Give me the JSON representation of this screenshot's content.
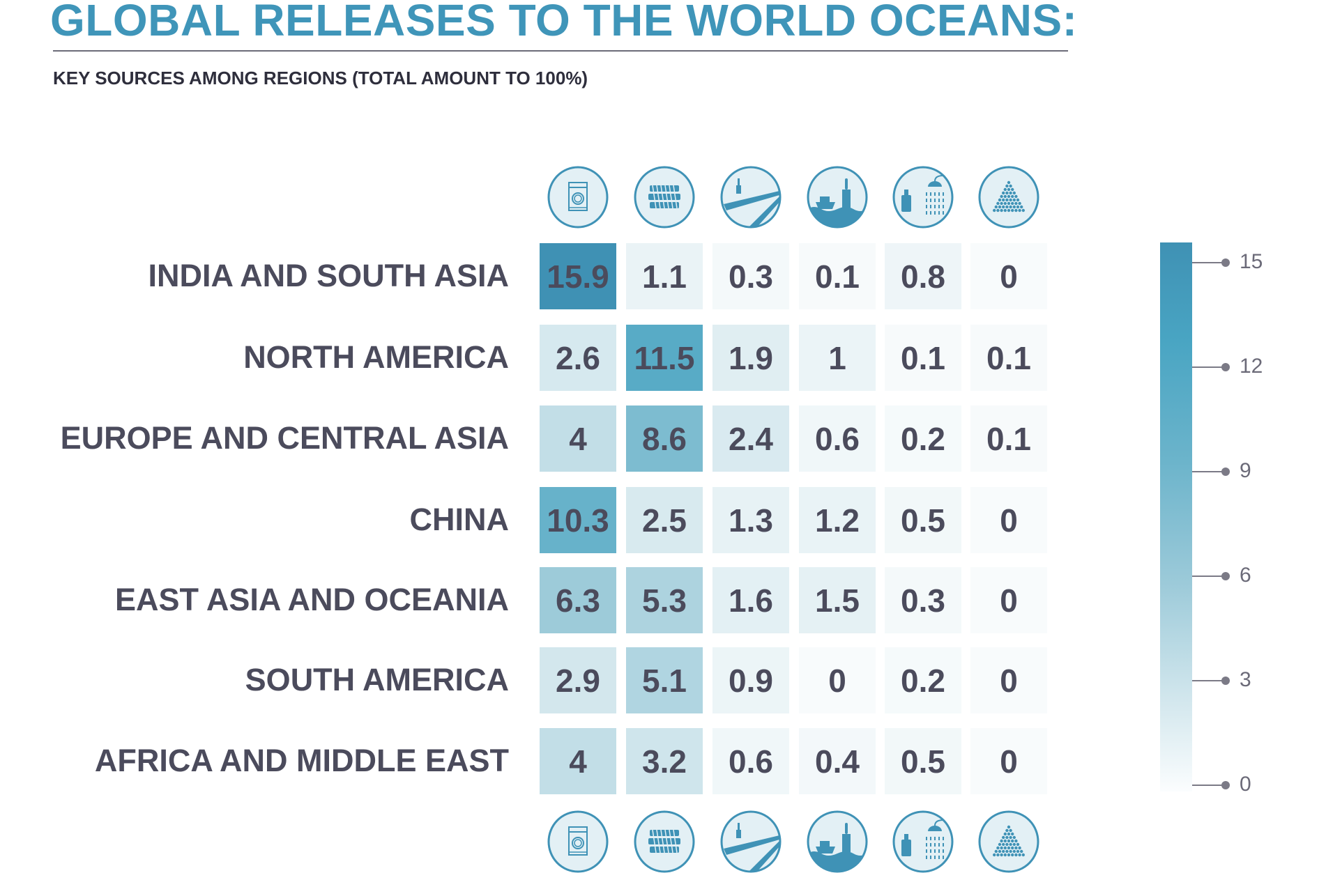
{
  "title": "GLOBAL RELEASES TO THE WORLD OCEANS:",
  "subtitle": "KEY SOURCES AMONG REGIONS (TOTAL AMOUNT TO 100%)",
  "chart_data": {
    "type": "heatmap",
    "title": "GLOBAL RELEASES TO THE WORLD OCEANS:",
    "subtitle": "KEY SOURCES AMONG REGIONS (TOTAL AMOUNT TO 100%)",
    "rows": [
      "INDIA AND SOUTH ASIA",
      "NORTH AMERICA",
      "EUROPE AND CENTRAL ASIA",
      "CHINA",
      "EAST ASIA AND OCEANIA",
      "SOUTH AMERICA",
      "AFRICA AND MIDDLE EAST"
    ],
    "columns": [
      "washing-machine-icon",
      "tyres-icon",
      "road-paint-icon",
      "marine-coatings-icon",
      "personal-care-icon",
      "plastic-pellets-icon"
    ],
    "values": [
      [
        15.9,
        1.1,
        0.3,
        0.1,
        0.8,
        0
      ],
      [
        2.6,
        11.5,
        1.9,
        1,
        0.1,
        0.1
      ],
      [
        4,
        8.6,
        2.4,
        0.6,
        0.2,
        0.1
      ],
      [
        10.3,
        2.5,
        1.3,
        1.2,
        0.5,
        0
      ],
      [
        6.3,
        5.3,
        1.6,
        1.5,
        0.3,
        0
      ],
      [
        2.9,
        5.1,
        0.9,
        0,
        0.2,
        0
      ],
      [
        4,
        3.2,
        0.6,
        0.4,
        0.5,
        0
      ]
    ],
    "colorbar": {
      "ticks": [
        15,
        12,
        9,
        6,
        3,
        0
      ],
      "range": [
        0,
        15.9
      ]
    },
    "colors": {
      "high": "#3f91b4",
      "low": "#f8fbfc",
      "text": "#4b4b5c",
      "title": "#3f95b9"
    }
  }
}
